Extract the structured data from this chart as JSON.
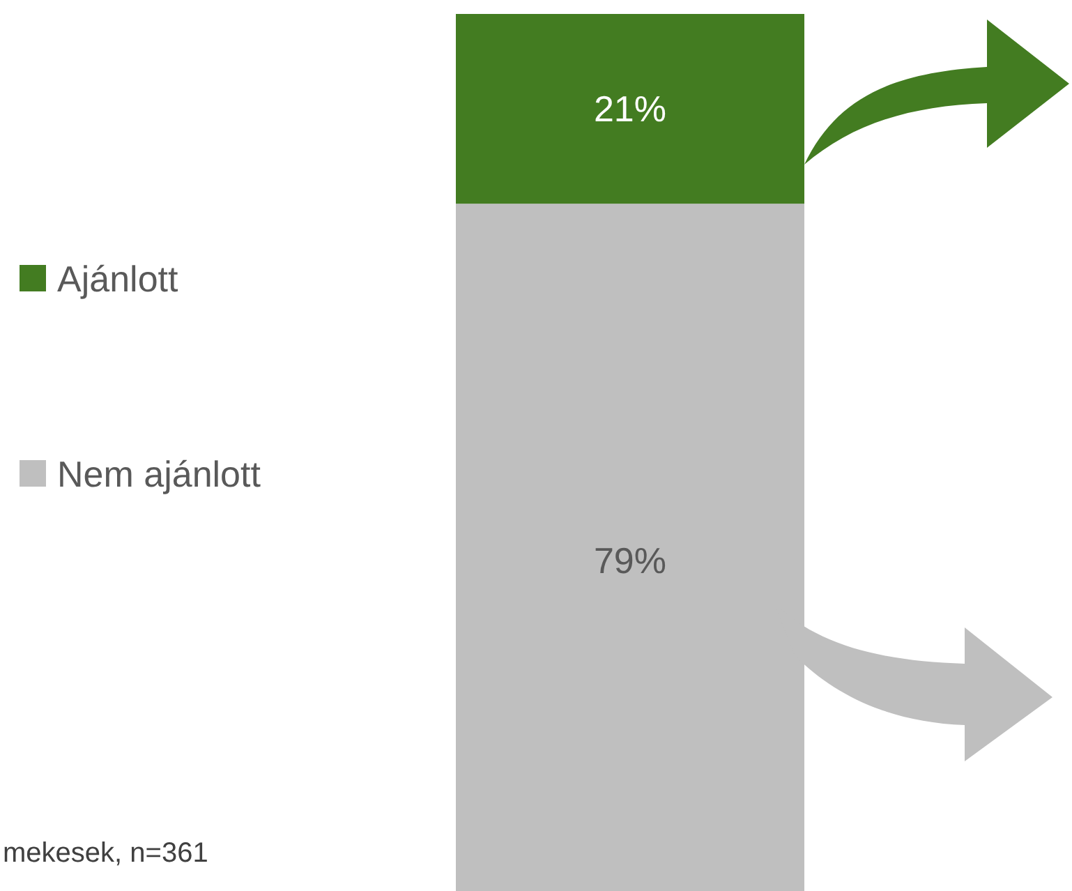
{
  "chart_data": {
    "type": "bar",
    "stacked": true,
    "categories": [
      null
    ],
    "series": [
      {
        "name": "Nem ajánlott",
        "color": "#bfbfbf",
        "values": [
          79
        ],
        "value_labels": [
          "79%"
        ]
      },
      {
        "name": "Ajánlott",
        "color": "#437c21",
        "values": [
          21
        ],
        "value_labels": [
          "21%"
        ]
      }
    ],
    "legend": "left",
    "annotations": [
      "mekesek, n=361"
    ]
  }
}
